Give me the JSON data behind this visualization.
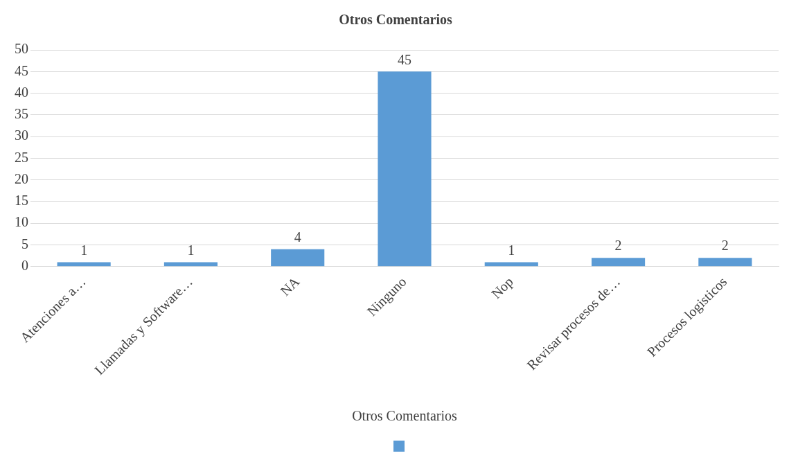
{
  "chart_data": {
    "type": "bar",
    "title": "Otros Comentarios",
    "xlabel": "Otros Comentarios",
    "categories": [
      "Atenciones a…",
      "Llamadas y Software…",
      "NA",
      "Ninguno",
      "Nop",
      "Revisar procesos de…",
      "Procesos logisticos"
    ],
    "values": [
      1,
      1,
      4,
      45,
      1,
      2,
      2
    ],
    "color": "#5b9bd5",
    "ylim": [
      0,
      50
    ],
    "yticks": [
      0,
      5,
      10,
      15,
      20,
      25,
      30,
      35,
      40,
      45,
      50
    ],
    "grid": "y",
    "data_labels": true
  }
}
